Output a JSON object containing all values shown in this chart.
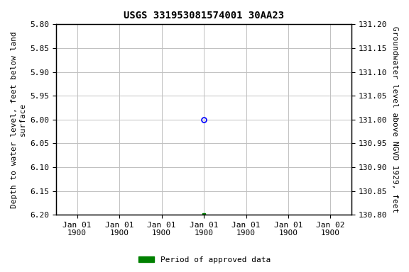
{
  "title": "USGS 331953081574001 30AA23",
  "ylabel_left": "Depth to water level, feet below land\nsurface",
  "ylabel_right": "Groundwater level above NGVD 1929, feet",
  "ylim_left": [
    6.2,
    5.8
  ],
  "ylim_right": [
    130.8,
    131.2
  ],
  "yticks_left": [
    5.8,
    5.85,
    5.9,
    5.95,
    6.0,
    6.05,
    6.1,
    6.15,
    6.2
  ],
  "yticks_right": [
    130.8,
    130.85,
    130.9,
    130.95,
    131.0,
    131.05,
    131.1,
    131.15,
    131.2
  ],
  "ytick_labels_left": [
    "5.80",
    "5.85",
    "5.90",
    "5.95",
    "6.00",
    "6.05",
    "6.10",
    "6.15",
    "6.20"
  ],
  "ytick_labels_right": [
    "130.80",
    "130.85",
    "130.90",
    "130.95",
    "131.00",
    "131.05",
    "131.10",
    "131.15",
    "131.20"
  ],
  "xtick_positions": [
    0,
    1,
    2,
    3,
    4,
    5,
    6
  ],
  "xtick_labels": [
    "Jan 01\n1900",
    "Jan 01\n1900",
    "Jan 01\n1900",
    "Jan 01\n1900",
    "Jan 01\n1900",
    "Jan 01\n1900",
    "Jan 02\n1900"
  ],
  "xlim": [
    -0.5,
    6.5
  ],
  "blue_point_x": 3,
  "blue_point_y": 6.0,
  "green_point_x": 3,
  "green_point_y": 6.2,
  "background_color": "#ffffff",
  "grid_color": "#c0c0c0",
  "point_blue_color": "#0000ff",
  "point_green_color": "#008000",
  "legend_label": "Period of approved data",
  "legend_color": "#008000",
  "title_fontsize": 10,
  "axis_fontsize": 8,
  "tick_fontsize": 8
}
